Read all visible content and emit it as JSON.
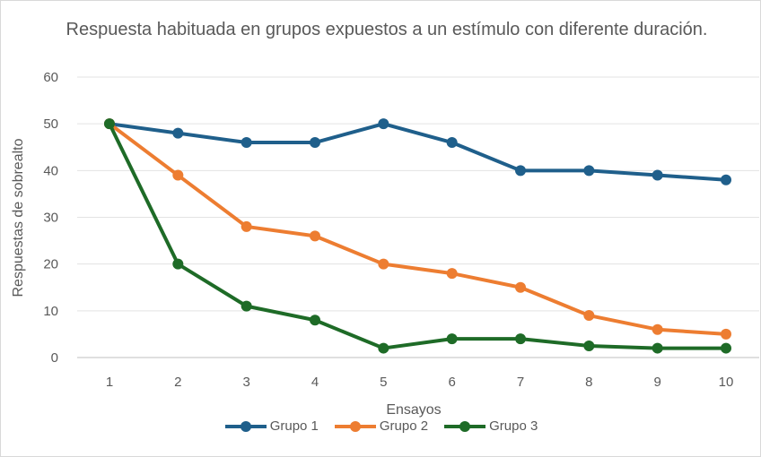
{
  "chart_data": {
    "type": "line",
    "title": "Respuesta habituada en grupos expuestos a un estímulo  con diferente duración.",
    "xlabel": "Ensayos",
    "ylabel": "Respuestas de sobrealto",
    "x": [
      1,
      2,
      3,
      4,
      5,
      6,
      7,
      8,
      9,
      10
    ],
    "ylim": [
      0,
      60
    ],
    "yticks": [
      0,
      10,
      20,
      30,
      40,
      50,
      60
    ],
    "grid": true,
    "legend": "bottom",
    "series": [
      {
        "name": "Grupo 1",
        "color": "#1f5f8b",
        "values": [
          50,
          48,
          46,
          46,
          50,
          46,
          40,
          40,
          39,
          38
        ]
      },
      {
        "name": "Grupo 2",
        "color": "#ed7d31",
        "values": [
          50,
          39,
          28,
          26,
          20,
          18,
          15,
          9,
          6,
          5
        ]
      },
      {
        "name": "Grupo 3",
        "color": "#1e6b27",
        "values": [
          50,
          20,
          11,
          8,
          2,
          4,
          4,
          2.5,
          2,
          2
        ]
      }
    ]
  }
}
